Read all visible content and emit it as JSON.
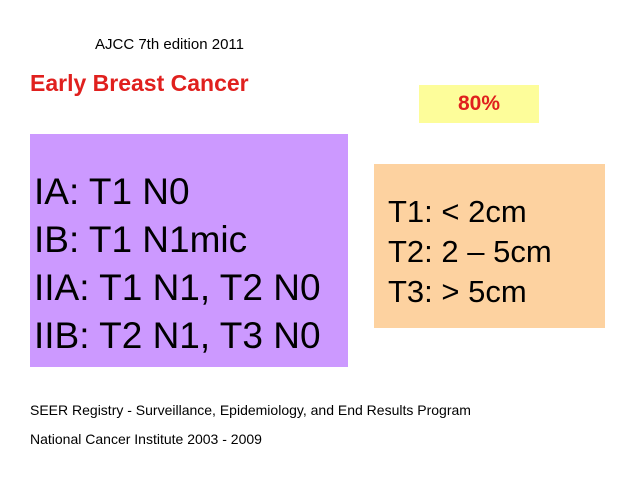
{
  "edition": "AJCC 7th edition 2011",
  "title": "Early Breast Cancer",
  "percentage": "80%",
  "stages": [
    "IA:  T1 N0",
    "IB:  T1 N1mic",
    "IIA: T1 N1, T2 N0",
    "IIB: T2 N1, T3 N0"
  ],
  "tumor_sizes": [
    "T1: < 2cm",
    "T2: 2 – 5cm",
    "T3: > 5cm"
  ],
  "footnotes": [
    "SEER Registry - Surveillance, Epidemiology, and End Results Program",
    "National Cancer Institute 2003 - 2009"
  ],
  "colors": {
    "title_red": "#e0201e",
    "badge_yellow": "#fdfd9a",
    "stage_purple": "#cc99ff",
    "size_peach": "#fdd2a0"
  }
}
